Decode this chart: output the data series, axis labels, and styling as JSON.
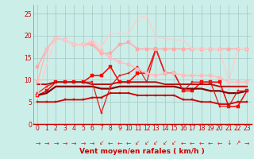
{
  "background_color": "#cceee8",
  "grid_color": "#aacccc",
  "xlabel": "Vent moyen/en rafales ( km/h )",
  "xlabel_color": "#cc0000",
  "x_ticks": [
    0,
    1,
    2,
    3,
    4,
    5,
    6,
    7,
    8,
    9,
    10,
    11,
    12,
    13,
    14,
    15,
    16,
    17,
    18,
    19,
    20,
    21,
    22,
    23
  ],
  "ylim": [
    0,
    27
  ],
  "yticks": [
    0,
    5,
    10,
    15,
    20,
    25
  ],
  "lines": [
    {
      "y": [
        6.5,
        7.5,
        9.5,
        9.5,
        9.5,
        9.5,
        11.0,
        11.0,
        13.0,
        9.5,
        9.5,
        11.5,
        11.5,
        17.0,
        11.5,
        11.5,
        7.5,
        7.5,
        9.5,
        9.5,
        9.5,
        4.0,
        4.0,
        7.5
      ],
      "color": "#ff0000",
      "lw": 1.1,
      "marker": "s",
      "ms": 2.2,
      "alpha": 1.0
    },
    {
      "y": [
        6.5,
        7.0,
        8.5,
        8.5,
        8.5,
        8.5,
        8.5,
        8.0,
        8.0,
        8.5,
        8.5,
        8.5,
        8.5,
        8.5,
        8.5,
        8.5,
        8.0,
        8.0,
        8.0,
        7.5,
        7.5,
        7.0,
        7.0,
        7.5
      ],
      "color": "#880000",
      "lw": 1.6,
      "marker": null,
      "ms": 0,
      "alpha": 1.0
    },
    {
      "y": [
        7.0,
        8.5,
        9.5,
        9.5,
        9.5,
        9.5,
        9.5,
        2.5,
        8.5,
        11.0,
        11.5,
        13.0,
        9.5,
        17.0,
        11.5,
        11.5,
        7.5,
        9.5,
        9.5,
        9.5,
        4.0,
        4.0,
        7.5,
        7.5
      ],
      "color": "#dd2222",
      "lw": 0.9,
      "marker": "s",
      "ms": 2.0,
      "alpha": 1.0
    },
    {
      "y": [
        9.0,
        9.0,
        9.5,
        9.5,
        9.5,
        9.5,
        9.0,
        9.0,
        9.0,
        9.5,
        9.5,
        9.5,
        9.5,
        9.5,
        9.0,
        9.0,
        9.0,
        9.0,
        9.0,
        9.0,
        8.5,
        8.5,
        8.5,
        8.5
      ],
      "color": "#bb1111",
      "lw": 1.4,
      "marker": null,
      "ms": 0,
      "alpha": 1.0
    },
    {
      "y": [
        13.0,
        17.0,
        19.5,
        19.0,
        18.0,
        18.0,
        18.0,
        16.0,
        16.0,
        18.0,
        18.5,
        17.0,
        17.0,
        17.0,
        17.0,
        17.0,
        17.0,
        17.0,
        17.0,
        17.0,
        17.0,
        17.0,
        17.0,
        17.0
      ],
      "color": "#ffaaaa",
      "lw": 1.1,
      "marker": "s",
      "ms": 2.2,
      "alpha": 1.0
    },
    {
      "y": [
        9.5,
        17.0,
        19.5,
        19.0,
        18.0,
        18.0,
        18.5,
        16.5,
        15.0,
        14.0,
        13.5,
        12.5,
        11.5,
        11.0,
        11.5,
        11.5,
        11.0,
        11.0,
        11.0,
        11.0,
        10.5,
        9.5,
        9.5,
        9.5
      ],
      "color": "#ffbbbb",
      "lw": 1.1,
      "marker": "s",
      "ms": 2.2,
      "alpha": 1.0
    },
    {
      "y": [
        6.5,
        13.5,
        19.5,
        19.0,
        18.0,
        18.0,
        19.0,
        17.5,
        20.5,
        20.5,
        20.5,
        24.0,
        24.5,
        19.5,
        19.5,
        19.0,
        19.0,
        17.0,
        17.0,
        17.0,
        17.0,
        9.5,
        17.0,
        17.0
      ],
      "color": "#ffcccc",
      "lw": 0.9,
      "marker": "s",
      "ms": 2.0,
      "alpha": 1.0
    },
    {
      "y": [
        5.0,
        5.0,
        5.0,
        5.5,
        5.5,
        5.5,
        6.0,
        6.0,
        7.0,
        7.0,
        7.0,
        6.5,
        6.5,
        6.5,
        6.5,
        6.5,
        5.5,
        5.5,
        5.0,
        5.0,
        4.5,
        4.5,
        5.0,
        5.0
      ],
      "color": "#cc0000",
      "lw": 1.3,
      "marker": "s",
      "ms": 2.0,
      "alpha": 1.0
    }
  ],
  "arrow_directions": [
    0,
    0,
    0,
    0,
    0,
    0,
    0,
    135,
    180,
    180,
    180,
    200,
    210,
    210,
    210,
    200,
    180,
    180,
    160,
    160,
    160,
    90,
    315,
    0
  ],
  "arrow_color": "#dd2222",
  "tick_color": "#cc0000",
  "tick_fontsize": 5.5,
  "arrow_row_color": "#cc0000"
}
